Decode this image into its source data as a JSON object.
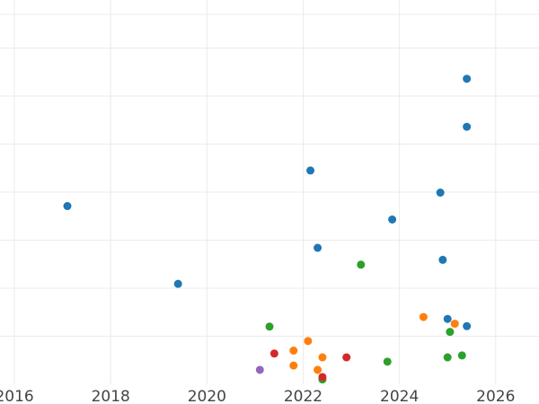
{
  "chart_data": {
    "type": "scatter",
    "title": "",
    "xlabel": "",
    "ylabel": "",
    "xlim": [
      2015.7,
      2026.9
    ],
    "ylim": [
      0,
      8
    ],
    "grid": true,
    "legend": "none",
    "x_ticks": [
      2016,
      2018,
      2020,
      2022,
      2024,
      2026
    ],
    "x_tick_labels": [
      "2016",
      "2018",
      "2020",
      "2022",
      "2024",
      "2026"
    ],
    "y_gridlines": [
      1,
      2,
      3,
      4,
      5,
      6,
      7
    ],
    "y_gridlines_faint": [
      7.7
    ],
    "series": [
      {
        "color": "#1f77b4",
        "points": [
          {
            "x": 2025.4,
            "y": 6.36
          },
          {
            "x": 2025.4,
            "y": 5.36
          },
          {
            "x": 2022.15,
            "y": 4.45
          },
          {
            "x": 2024.85,
            "y": 3.99
          },
          {
            "x": 2017.1,
            "y": 3.71
          },
          {
            "x": 2023.85,
            "y": 3.43
          },
          {
            "x": 2022.3,
            "y": 2.84
          },
          {
            "x": 2024.9,
            "y": 2.59
          },
          {
            "x": 2019.4,
            "y": 2.09
          },
          {
            "x": 2025.0,
            "y": 1.36
          },
          {
            "x": 2025.4,
            "y": 1.21
          }
        ]
      },
      {
        "color": "#2ca02c",
        "points": [
          {
            "x": 2023.2,
            "y": 2.49
          },
          {
            "x": 2021.3,
            "y": 1.2
          },
          {
            "x": 2025.05,
            "y": 1.09
          },
          {
            "x": 2025.3,
            "y": 0.6
          },
          {
            "x": 2025.0,
            "y": 0.56
          },
          {
            "x": 2023.75,
            "y": 0.47
          },
          {
            "x": 2022.4,
            "y": 0.1
          }
        ]
      },
      {
        "color": "#ff7f0e",
        "points": [
          {
            "x": 2024.5,
            "y": 1.4
          },
          {
            "x": 2025.15,
            "y": 1.26
          },
          {
            "x": 2022.1,
            "y": 0.9
          },
          {
            "x": 2021.8,
            "y": 0.7
          },
          {
            "x": 2022.4,
            "y": 0.56
          },
          {
            "x": 2021.8,
            "y": 0.39
          },
          {
            "x": 2022.3,
            "y": 0.3
          }
        ]
      },
      {
        "color": "#d62728",
        "points": [
          {
            "x": 2021.4,
            "y": 0.64
          },
          {
            "x": 2022.9,
            "y": 0.56
          },
          {
            "x": 2022.4,
            "y": 0.15
          }
        ]
      },
      {
        "color": "#9467bd",
        "points": [
          {
            "x": 2021.1,
            "y": 0.3
          }
        ]
      }
    ]
  }
}
